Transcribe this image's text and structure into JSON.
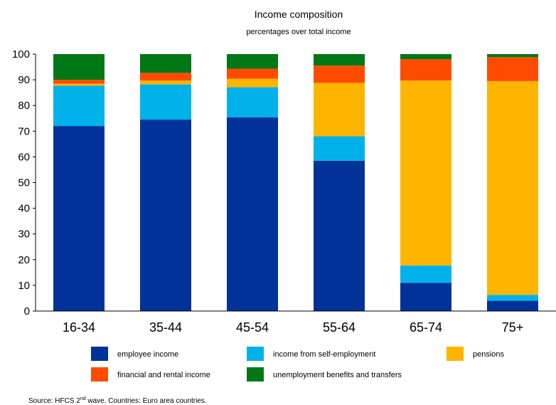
{
  "chart_data": {
    "type": "bar",
    "stacked": true,
    "title": "Income composition",
    "subtitle": "percentages over total income",
    "xlabel": "",
    "ylabel": "",
    "ylim": [
      0,
      100
    ],
    "yticks": [
      0,
      10,
      20,
      30,
      40,
      50,
      60,
      70,
      80,
      90,
      100
    ],
    "grid": false,
    "legend_position": "bottom",
    "categories": [
      "16-34",
      "35-44",
      "45-54",
      "55-64",
      "65-74",
      "75+"
    ],
    "series": [
      {
        "name": "employee income",
        "color": "#003299",
        "values": [
          72.0,
          74.5,
          75.4,
          58.5,
          11.0,
          4.0
        ]
      },
      {
        "name": "income from self-employment",
        "color": "#00B1EA",
        "values": [
          15.7,
          13.7,
          11.7,
          9.5,
          6.7,
          2.3
        ]
      },
      {
        "name": "pensions",
        "color": "#FFB400",
        "values": [
          0.8,
          1.5,
          3.3,
          20.8,
          72.0,
          83.2
        ]
      },
      {
        "name": "financial and rental income",
        "color": "#FF4B00",
        "values": [
          1.5,
          3.0,
          3.9,
          6.7,
          8.3,
          9.3
        ]
      },
      {
        "name": "unemployment benefits and transfers",
        "color": "#007816",
        "values": [
          10.0,
          7.3,
          5.7,
          4.5,
          2.0,
          1.2
        ]
      }
    ]
  },
  "source": {
    "prefix": "Source: HFCS 2",
    "superscript": "nd",
    "suffix": " wave. Countries: Euro area countries."
  }
}
